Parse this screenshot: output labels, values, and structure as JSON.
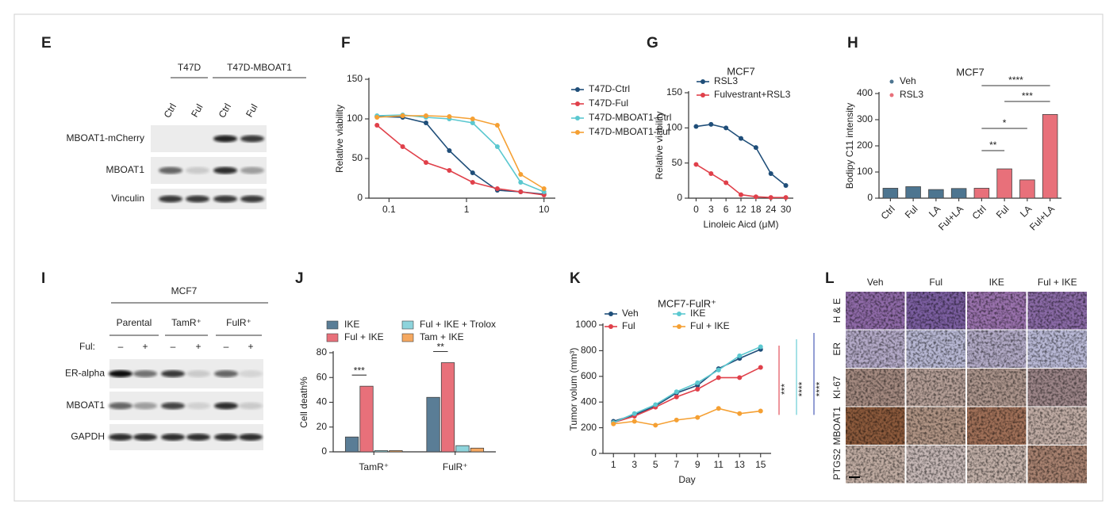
{
  "chart_data": [
    {
      "panel": "F",
      "type": "line",
      "ylabel": "Relative viability",
      "xlog": true,
      "x": [
        0.07,
        0.15,
        0.3,
        0.6,
        1.2,
        2.5,
        5,
        10
      ],
      "xlim": [
        0.055,
        14
      ],
      "xticks": [
        0.1,
        1,
        10
      ],
      "ylim": [
        0,
        150
      ],
      "yticks": [
        0,
        50,
        100,
        150
      ],
      "series": [
        {
          "name": "T47D-Ctrl",
          "color": "#1f4e79",
          "values": [
            103,
            102,
            95,
            60,
            32,
            10,
            8,
            5
          ]
        },
        {
          "name": "T47D-Ful",
          "color": "#e0404a",
          "values": [
            92,
            65,
            45,
            35,
            20,
            12,
            8,
            4
          ]
        },
        {
          "name": "T47D-MBOAT1-Ctrl",
          "color": "#5bc8d0",
          "values": [
            104,
            105,
            102,
            100,
            95,
            65,
            20,
            8
          ]
        },
        {
          "name": "T47D-MBOAT1-Ful",
          "color": "#f5a033",
          "values": [
            102,
            104,
            104,
            103,
            100,
            92,
            30,
            12
          ]
        }
      ]
    },
    {
      "panel": "G",
      "type": "line",
      "title": "MCF7",
      "ylabel": "Relative viability",
      "xlabel": "Linoleic Aicd (μM)",
      "categories": [
        "0",
        "3",
        "6",
        "12",
        "18",
        "24",
        "30"
      ],
      "ylim": [
        0,
        150
      ],
      "yticks": [
        0,
        50,
        100,
        150
      ],
      "series": [
        {
          "name": "RSL3",
          "color": "#1f4e79",
          "values": [
            102,
            105,
            100,
            85,
            72,
            35,
            18
          ]
        },
        {
          "name": "Fulvestrant+RSL3",
          "color": "#e0404a",
          "values": [
            48,
            35,
            22,
            5,
            2,
            1,
            1
          ]
        }
      ]
    },
    {
      "panel": "H",
      "type": "bar",
      "title": "MCF7",
      "ylabel": "Bodipy C11 intensity",
      "categories": [
        "Ctrl",
        "Ful",
        "LA",
        "Ful+LA",
        "Ctrl",
        "Ful",
        "LA",
        "Ful+LA"
      ],
      "ylim": [
        0,
        400
      ],
      "yticks": [
        0,
        100,
        200,
        300,
        400
      ],
      "series": [
        {
          "name": "Veh",
          "color": "#4d7590",
          "values": [
            38,
            44,
            33,
            37,
            null,
            null,
            null,
            null
          ]
        },
        {
          "name": "RSL3",
          "color": "#e8707a",
          "values": [
            null,
            null,
            null,
            null,
            38,
            112,
            70,
            320
          ]
        }
      ],
      "annotations": [
        {
          "text": "**"
        },
        {
          "text": "*"
        },
        {
          "text": "***"
        },
        {
          "text": "****"
        }
      ]
    },
    {
      "panel": "J",
      "type": "bar",
      "ylabel": "Cell death%",
      "categories": [
        "TamR⁺",
        "FulR⁺"
      ],
      "ylim": [
        0,
        80
      ],
      "yticks": [
        0,
        20,
        40,
        60,
        80
      ],
      "series": [
        {
          "name": "IKE",
          "color": "#5a7d96",
          "values": [
            12,
            44
          ]
        },
        {
          "name": "Ful + IKE",
          "color": "#e8707a",
          "values": [
            53,
            72
          ]
        },
        {
          "name": "Ful + IKE + Trolox",
          "color": "#8ed4dc",
          "values": [
            1,
            5
          ]
        },
        {
          "name": "Tam + IKE",
          "color": "#f5a860",
          "values": [
            1,
            3
          ]
        }
      ],
      "annotations": [
        {
          "text": "***"
        },
        {
          "text": "**"
        }
      ]
    },
    {
      "panel": "K",
      "type": "line",
      "title": "MCF7-FulR⁺",
      "ylabel": "Tumor volum (mm³)",
      "xlabel": "Day",
      "x": [
        1,
        3,
        5,
        7,
        9,
        11,
        13,
        15
      ],
      "xlim": [
        0,
        16
      ],
      "xticks": [
        1,
        3,
        5,
        7,
        9,
        11,
        13,
        15
      ],
      "ylim": [
        0,
        1000
      ],
      "yticks": [
        0,
        200,
        400,
        600,
        800,
        1000
      ],
      "series": [
        {
          "name": "Veh",
          "color": "#1f4e79",
          "values": [
            250,
            300,
            370,
            470,
            530,
            660,
            740,
            810
          ]
        },
        {
          "name": "Ful",
          "color": "#e0404a",
          "values": [
            240,
            290,
            360,
            440,
            500,
            590,
            590,
            670
          ]
        },
        {
          "name": "IKE",
          "color": "#5bc8d0",
          "values": [
            240,
            310,
            380,
            480,
            550,
            650,
            760,
            830
          ]
        },
        {
          "name": "Ful + IKE",
          "color": "#f5a033",
          "values": [
            230,
            250,
            220,
            260,
            280,
            350,
            310,
            330
          ]
        }
      ],
      "annotations": [
        {
          "text": "***",
          "color": "#e0404a"
        },
        {
          "text": "****",
          "color": "#5bc8d0"
        },
        {
          "text": "****",
          "color": "#3b4fb0"
        }
      ]
    }
  ],
  "blots": [
    {
      "panel": "E",
      "groups": [
        "T47D",
        "T47D-MBOAT1"
      ],
      "lanes": [
        "Ctrl",
        "Ful",
        "Ctrl",
        "Ful"
      ],
      "rows": [
        "MBOAT1-mCherry",
        "MBOAT1",
        "Vinculin"
      ]
    },
    {
      "panel": "I",
      "title": "MCF7",
      "groups": [
        "Parental",
        "TamR⁺",
        "FulR⁺"
      ],
      "treatment": "Ful:",
      "lanes": [
        "–",
        "+",
        "–",
        "+",
        "–",
        "+"
      ],
      "rows": [
        "ER-alpha",
        "MBOAT1",
        "GAPDH"
      ]
    }
  ],
  "ihc": {
    "panel": "L",
    "columns": [
      "Veh",
      "Ful",
      "IKE",
      "Ful + IKE"
    ],
    "rows": [
      "H & E",
      "ER",
      "KI-67",
      "MBOAT1",
      "PTGS2"
    ]
  }
}
